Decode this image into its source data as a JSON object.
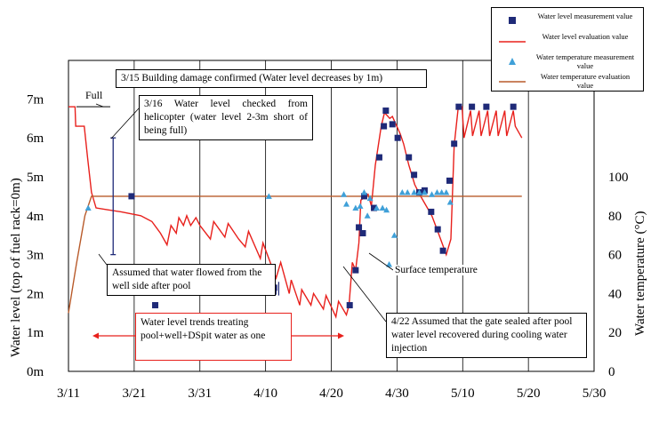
{
  "chart_data": {
    "type": "line",
    "xlabel": "",
    "ylabel": "Water level (top of fuel rack=0m)",
    "y2label": "Water temperature (°C)",
    "x_ticks": [
      "3/11",
      "3/21",
      "3/31",
      "4/10",
      "4/20",
      "4/30",
      "5/10",
      "5/20",
      "5/30"
    ],
    "xlim_days": [
      0,
      80
    ],
    "ylim": [
      0,
      7
    ],
    "y_ticks": [
      "0m",
      "1m",
      "2m",
      "3m",
      "4m",
      "5m",
      "6m",
      "7m"
    ],
    "y2lim": [
      0,
      140
    ],
    "y2_ticks": [
      "0",
      "20",
      "40",
      "60",
      "80",
      "100"
    ],
    "grid": "vertical",
    "legend_position": "top-right",
    "series": [
      {
        "name": "Water level measurement value",
        "marker": "square",
        "color": "#1f2a78",
        "points": [
          [
            13.2,
            1.7
          ],
          [
            42.8,
            1.7
          ],
          [
            43.7,
            2.6
          ],
          [
            44.2,
            3.7
          ],
          [
            44.8,
            3.55
          ],
          [
            45.0,
            4.5
          ],
          [
            46.5,
            4.2
          ],
          [
            47.3,
            5.5
          ],
          [
            48.0,
            6.3
          ],
          [
            48.3,
            6.7
          ],
          [
            49.3,
            6.35
          ],
          [
            50.1,
            6.0
          ],
          [
            51.8,
            5.5
          ],
          [
            52.6,
            5.05
          ],
          [
            53.4,
            4.6
          ],
          [
            54.2,
            4.65
          ],
          [
            55.2,
            4.1
          ],
          [
            56.2,
            3.65
          ],
          [
            57.0,
            3.1
          ],
          [
            58.0,
            4.9
          ],
          [
            58.7,
            5.85
          ],
          [
            59.4,
            6.8
          ],
          [
            61.4,
            6.8
          ],
          [
            63.6,
            6.8
          ],
          [
            67.7,
            6.8
          ],
          [
            31.3,
            2.15
          ],
          [
            31.2,
            2.05
          ],
          [
            9.6,
            4.5
          ]
        ]
      },
      {
        "name": "Water level evaluation value",
        "color": "#e8201c",
        "points": [
          [
            0,
            6.8
          ],
          [
            1.0,
            6.8
          ],
          [
            1.1,
            6.3
          ],
          [
            2.4,
            6.3
          ],
          [
            2.9,
            5.5
          ],
          [
            3.5,
            4.6
          ],
          [
            4.2,
            4.2
          ],
          [
            6,
            4.15
          ],
          [
            8,
            4.1
          ],
          [
            11,
            4.0
          ],
          [
            12.7,
            3.85
          ],
          [
            14.0,
            3.55
          ],
          [
            15.0,
            3.25
          ],
          [
            15.6,
            3.75
          ],
          [
            16.4,
            3.55
          ],
          [
            16.8,
            3.95
          ],
          [
            17.5,
            3.75
          ],
          [
            18.0,
            4.0
          ],
          [
            18.6,
            3.75
          ],
          [
            19.4,
            3.95
          ],
          [
            20.0,
            3.75
          ],
          [
            21.6,
            3.4
          ],
          [
            22.1,
            3.85
          ],
          [
            23.8,
            3.45
          ],
          [
            24.3,
            3.8
          ],
          [
            25.9,
            3.4
          ],
          [
            26.9,
            3.2
          ],
          [
            27.4,
            3.6
          ],
          [
            29.2,
            2.9
          ],
          [
            29.6,
            3.3
          ],
          [
            31.6,
            2.4
          ],
          [
            32.3,
            2.8
          ],
          [
            33.6,
            2.0
          ],
          [
            33.9,
            2.35
          ],
          [
            35.2,
            1.7
          ],
          [
            35.5,
            2.1
          ],
          [
            36.9,
            1.7
          ],
          [
            37.3,
            2.0
          ],
          [
            38.8,
            1.6
          ],
          [
            39.2,
            1.95
          ],
          [
            40.7,
            1.4
          ],
          [
            41.1,
            1.8
          ],
          [
            42.3,
            1.45
          ],
          [
            42.7,
            1.7
          ],
          [
            43.2,
            2.8
          ],
          [
            43.7,
            2.6
          ],
          [
            44.2,
            3.3
          ],
          [
            44.5,
            4.4
          ],
          [
            45.6,
            4.55
          ],
          [
            46.1,
            4.25
          ],
          [
            46.7,
            5.3
          ],
          [
            47.6,
            6.3
          ],
          [
            48.1,
            6.65
          ],
          [
            48.9,
            6.5
          ],
          [
            49.3,
            6.55
          ],
          [
            50.5,
            6.1
          ],
          [
            51.0,
            5.85
          ],
          [
            51.8,
            5.3
          ],
          [
            52.7,
            4.8
          ],
          [
            53.6,
            4.5
          ],
          [
            55.3,
            4.0
          ],
          [
            56.2,
            3.6
          ],
          [
            57.5,
            3.0
          ],
          [
            58.2,
            3.4
          ],
          [
            58.7,
            5.8
          ],
          [
            59.3,
            6.75
          ],
          [
            59.9,
            6.8
          ],
          [
            60.2,
            6.0
          ],
          [
            61.2,
            6.7
          ],
          [
            61.5,
            6.05
          ],
          [
            62.5,
            6.7
          ],
          [
            62.8,
            6.05
          ],
          [
            63.8,
            6.7
          ],
          [
            64.1,
            6.05
          ],
          [
            65.1,
            6.7
          ],
          [
            65.4,
            6.05
          ],
          [
            66.4,
            6.7
          ],
          [
            66.7,
            6.05
          ],
          [
            67.7,
            6.7
          ],
          [
            68.0,
            6.3
          ],
          [
            69.0,
            6.0
          ]
        ]
      },
      {
        "name": "Water temperature measurement value",
        "marker": "triangle",
        "color": "#3fa0d8",
        "points_degC": [
          [
            3.0,
            84
          ],
          [
            30.5,
            90
          ],
          [
            41.9,
            91
          ],
          [
            42.3,
            86
          ],
          [
            43.7,
            84
          ],
          [
            44.4,
            85
          ],
          [
            45.0,
            92
          ],
          [
            45.5,
            80
          ],
          [
            45.9,
            89
          ],
          [
            46.9,
            84
          ],
          [
            47.8,
            84
          ],
          [
            48.4,
            83
          ],
          [
            48.8,
            55
          ],
          [
            49.6,
            70
          ],
          [
            50.8,
            92
          ],
          [
            51.6,
            92
          ],
          [
            52.6,
            92
          ],
          [
            53.4,
            92
          ],
          [
            54.2,
            92
          ],
          [
            55.3,
            91
          ],
          [
            56.1,
            92
          ],
          [
            56.8,
            92
          ],
          [
            57.5,
            92
          ],
          [
            58.1,
            87
          ]
        ]
      },
      {
        "name": "Water temperature evaluation value",
        "color": "#b85a2a",
        "points_degC": [
          [
            0,
            30
          ],
          [
            1.2,
            55
          ],
          [
            2.5,
            80
          ],
          [
            3.5,
            90
          ],
          [
            69.0,
            90
          ]
        ]
      }
    ],
    "annotations": {
      "full": "Full",
      "note_3_15": "3/15 Building damage confirmed (Water level decreases by 1m)",
      "note_3_16": "3/16 Water level checked from helicopter (water level 2-3m short of being full)",
      "note_well": "Assumed that water flowed from the well side after pool",
      "note_trend": "Water level trends treating pool+well+DSpit water as one",
      "note_surface": "Surface temperature",
      "note_4_22": "4/22 Assumed that the gate sealed after pool water level recovered during cooling water injection"
    },
    "legend": [
      {
        "label": "Water level measurement value",
        "symbol": "square",
        "color": "#1f2a78"
      },
      {
        "label": "Water level evaluation value",
        "symbol": "line",
        "color": "#e8201c"
      },
      {
        "label": "Water temperature measurement value",
        "symbol": "triangle",
        "color": "#3fa0d8"
      },
      {
        "label": "Water temperature evaluation value",
        "symbol": "line",
        "color": "#b85a2a"
      }
    ]
  }
}
